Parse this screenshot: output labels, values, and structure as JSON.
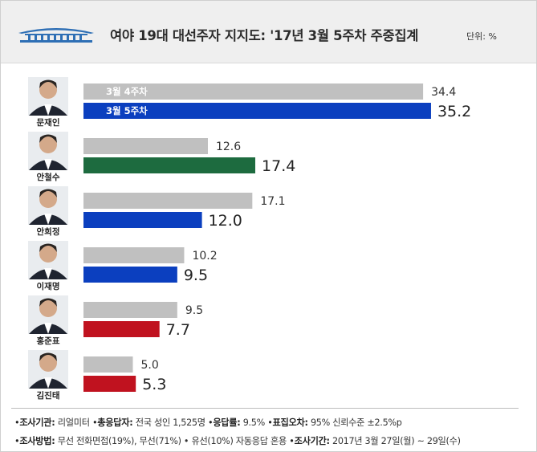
{
  "header": {
    "title": "여야 19대 대선주자 지지도: '17년 3월 5주차 주중집계",
    "unit": "단위: %",
    "emblem_icon": "blue-house-emblem-icon"
  },
  "chart_data": {
    "type": "bar",
    "orientation": "horizontal",
    "title": "여야 19대 대선주자 지지도: '17년 3월 5주차 주중집계",
    "unit": "%",
    "categories": [
      "문재인",
      "안철수",
      "안희정",
      "이재명",
      "홍준표",
      "김진태"
    ],
    "series": [
      {
        "name": "3월 4주차",
        "values": [
          34.4,
          12.6,
          17.1,
          10.2,
          9.5,
          5.0
        ],
        "color": "#c0c0c0"
      },
      {
        "name": "3월 5주차",
        "values": [
          35.2,
          17.4,
          12.0,
          9.5,
          7.7,
          5.3
        ],
        "colors": [
          "#0b3fbf",
          "#1d6b3f",
          "#0b3fbf",
          "#0b3fbf",
          "#c0121f",
          "#c0121f"
        ]
      }
    ],
    "value_labels": {
      "prev": [
        "34.4",
        "12.6",
        "17.1",
        "10.2",
        "9.5",
        "5.0"
      ],
      "curr": [
        "35.2",
        "17.4",
        "12.0",
        "9.5",
        "7.7",
        "5.3"
      ]
    },
    "xlim": [
      0,
      36
    ],
    "grid": false,
    "legend": "inside-first-bars"
  },
  "footer": {
    "line1": {
      "k1": "조사기관:",
      "v1": "리얼미터",
      "k2": "총응답자:",
      "v2": "전국 성인 1,525명",
      "k3": "응답률:",
      "v3": "9.5%",
      "k4": "표집오차:",
      "v4": "95% 신뢰수준 ±2.5%p"
    },
    "line2": {
      "k1": "조사방법:",
      "v1": "무선 전화면접(19%), 무선(71%) • 유선(10%) 자동응답 혼용",
      "k2": "조사기간:",
      "v2": "2017년 3월 27일(월) ~ 29일(수)"
    }
  }
}
